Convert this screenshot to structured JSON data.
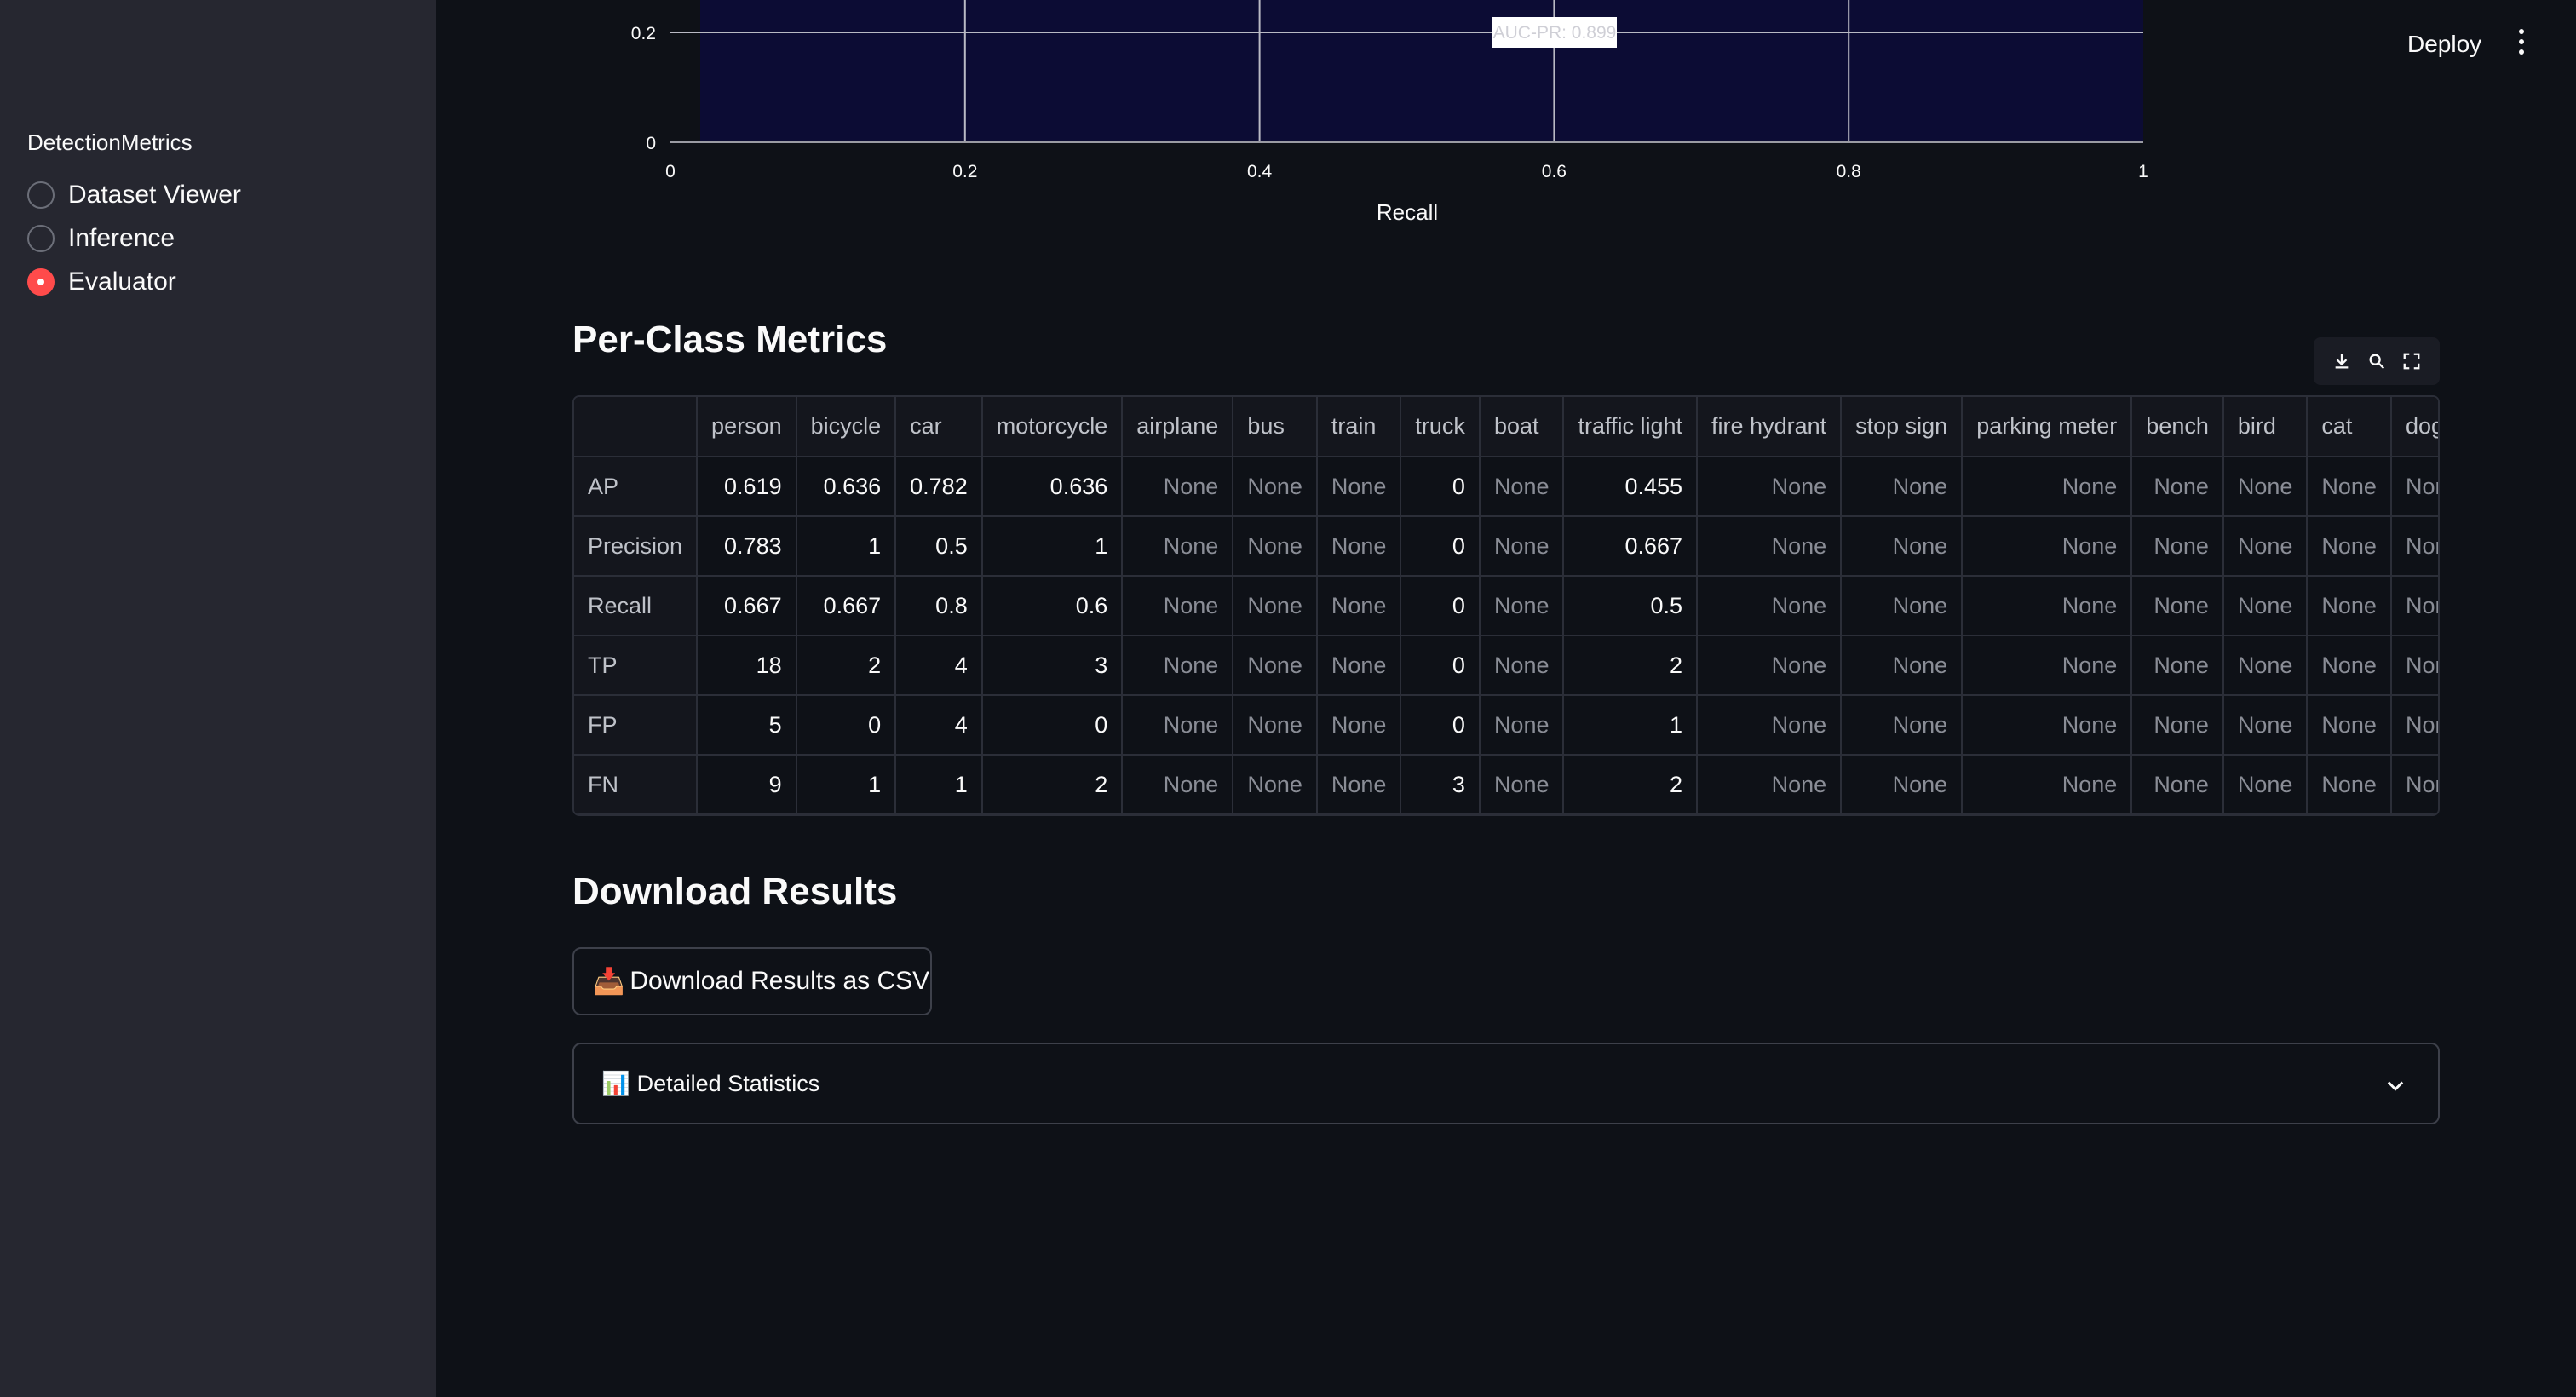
{
  "sidebar": {
    "title": "DetectionMetrics",
    "options": [
      {
        "label": "Dataset Viewer",
        "checked": false
      },
      {
        "label": "Inference",
        "checked": false
      },
      {
        "label": "Evaluator",
        "checked": true
      }
    ]
  },
  "header": {
    "deploy_label": "Deploy",
    "menu_icon": "vertical-ellipsis-icon"
  },
  "chart_data": {
    "type": "line",
    "xlabel": "Recall",
    "ylabel": "",
    "xlim": [
      0,
      1
    ],
    "visible_ylim": [
      0,
      0.2
    ],
    "x_ticks": [
      "0",
      "0.2",
      "0.4",
      "0.6",
      "0.8",
      "1"
    ],
    "y_ticks": [
      "0.2",
      "0"
    ],
    "annotation": "AUC-PR: 0.899",
    "plot_background": "#0c0c34"
  },
  "per_class": {
    "title": "Per-Class Metrics",
    "toolbar_icons": [
      "download-icon",
      "search-icon",
      "fullscreen-icon"
    ],
    "columns": [
      "",
      "person",
      "bicycle",
      "car",
      "motorcycle",
      "airplane",
      "bus",
      "train",
      "truck",
      "boat",
      "traffic light",
      "fire hydrant",
      "stop sign",
      "parking meter",
      "bench",
      "bird",
      "cat",
      "dog"
    ],
    "rows": [
      {
        "label": "AP",
        "values": [
          "0.619",
          "0.636",
          "0.782",
          "0.636",
          "None",
          "None",
          "None",
          "0",
          "None",
          "0.455",
          "None",
          "None",
          "None",
          "None",
          "None",
          "None",
          "None"
        ]
      },
      {
        "label": "Precision",
        "values": [
          "0.783",
          "1",
          "0.5",
          "1",
          "None",
          "None",
          "None",
          "0",
          "None",
          "0.667",
          "None",
          "None",
          "None",
          "None",
          "None",
          "None",
          "None"
        ]
      },
      {
        "label": "Recall",
        "values": [
          "0.667",
          "0.667",
          "0.8",
          "0.6",
          "None",
          "None",
          "None",
          "0",
          "None",
          "0.5",
          "None",
          "None",
          "None",
          "None",
          "None",
          "None",
          "None"
        ]
      },
      {
        "label": "TP",
        "values": [
          "18",
          "2",
          "4",
          "3",
          "None",
          "None",
          "None",
          "0",
          "None",
          "2",
          "None",
          "None",
          "None",
          "None",
          "None",
          "None",
          "None"
        ]
      },
      {
        "label": "FP",
        "values": [
          "5",
          "0",
          "4",
          "0",
          "None",
          "None",
          "None",
          "0",
          "None",
          "1",
          "None",
          "None",
          "None",
          "None",
          "None",
          "None",
          "None"
        ]
      },
      {
        "label": "FN",
        "values": [
          "9",
          "1",
          "1",
          "2",
          "None",
          "None",
          "None",
          "3",
          "None",
          "2",
          "None",
          "None",
          "None",
          "None",
          "None",
          "None",
          "None"
        ]
      }
    ]
  },
  "download": {
    "title": "Download Results",
    "button_emoji": "📥",
    "button_label": "Download Results as CSV"
  },
  "expander": {
    "emoji": "📊",
    "label": "Detailed Statistics"
  },
  "colors": {
    "accent": "#ff4b4b",
    "background": "#0e1117",
    "sidebar": "#262730"
  }
}
